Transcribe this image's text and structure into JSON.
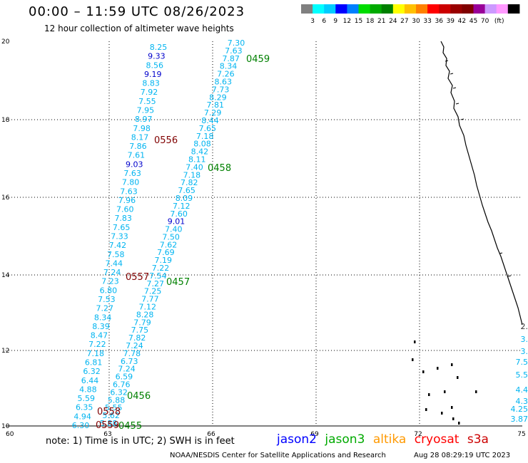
{
  "header": {
    "title": "00:00 – 11:59 UTC 08/26/2023",
    "subtitle": "12 hour collection of altimeter wave heights"
  },
  "colorbar": {
    "swatches": [
      "#808080",
      "#00ffff",
      "#00ccff",
      "#0000ff",
      "#0080ff",
      "#00dd00",
      "#00aa00",
      "#008000",
      "#ffff00",
      "#ffc000",
      "#ff8000",
      "#ff0000",
      "#cc0000",
      "#990000",
      "#800000",
      "#990099",
      "#cc99ff",
      "#ff99ff",
      "#000000"
    ],
    "labels": [
      "3",
      "6",
      "9",
      "12",
      "15",
      "18",
      "21",
      "24",
      "27",
      "30",
      "33",
      "36",
      "39",
      "42",
      "45",
      "70",
      "(ft)"
    ]
  },
  "axes": {
    "lon_ticks": [
      "60",
      "63",
      "66",
      "69",
      "72",
      "75"
    ],
    "lat_ticks": [
      "10",
      "12",
      "14",
      "16",
      "18",
      "20"
    ]
  },
  "passes": [
    {
      "label": "0459",
      "color": "#008000"
    },
    {
      "label": "0556",
      "color": "#800000"
    },
    {
      "label": "0458",
      "color": "#008000"
    },
    {
      "label": "0557",
      "color": "#800000"
    },
    {
      "label": "0457",
      "color": "#008000"
    },
    {
      "label": "0456",
      "color": "#008000"
    },
    {
      "label": "0558",
      "color": "#800000"
    },
    {
      "label": "0559",
      "color": "#800000"
    },
    {
      "label": "0455",
      "color": "#008000"
    }
  ],
  "colors": {
    "cyan": "#00b4f0",
    "blue": "#0000cc",
    "green": "#008000",
    "maroon": "#800000"
  },
  "track_left": {
    "values": [
      "8.25",
      "9.33",
      "8.56",
      "9.19",
      "8.83",
      "7.92",
      "7.55",
      "7.95",
      "8.97",
      "7.98",
      "8.17",
      "7.86",
      "7.61",
      "9.03",
      "7.63",
      "7.80",
      "7.63",
      "7.96",
      "7.60",
      "7.83",
      "7.65",
      "7.33",
      "7.42",
      "7.58",
      "7.44",
      "7.24",
      "7.23",
      "6.80",
      "7.53",
      "7.27",
      "8.34",
      "8.39",
      "8.47",
      "7.22",
      "7.18",
      "6.81",
      "6.32",
      "6.44",
      "4.88",
      "5.59",
      "6.35",
      "4.94",
      "6.30"
    ],
    "colors": [
      "cyan",
      "blue",
      "cyan",
      "blue",
      "cyan",
      "cyan",
      "cyan",
      "cyan",
      "cyan",
      "cyan",
      "cyan",
      "cyan",
      "cyan",
      "blue",
      "cyan",
      "cyan",
      "cyan",
      "cyan",
      "cyan",
      "cyan",
      "cyan",
      "cyan",
      "cyan",
      "cyan",
      "cyan",
      "cyan",
      "cyan",
      "cyan",
      "cyan",
      "cyan",
      "cyan",
      "cyan",
      "cyan",
      "cyan",
      "cyan",
      "cyan",
      "cyan",
      "cyan",
      "cyan",
      "cyan",
      "cyan",
      "cyan",
      "cyan"
    ]
  },
  "track_right": {
    "values": [
      "7.30",
      "7.63",
      "7.87",
      "8.34",
      "7.26",
      "8.63",
      "7.73",
      "8.29",
      "7.81",
      "7.29",
      "8.44",
      "7.65",
      "7.18",
      "8.08",
      "8.42",
      "8.11",
      "7.40",
      "7.18",
      "7.82",
      "7.65",
      "8.09",
      "7.12",
      "7.60",
      "9.01",
      "7.40",
      "7.50",
      "7.62",
      "7.69",
      "7.19",
      "7.22",
      "7.54",
      "7.27",
      "7.25",
      "7.77",
      "7.12",
      "8.28",
      "7.79",
      "7.75",
      "7.82",
      "7.24",
      "7.78",
      "6.73",
      "7.24",
      "6.59",
      "6.76",
      "6.32",
      "5.88",
      "5.55",
      "5.62",
      "5.88"
    ],
    "colors": [
      "cyan",
      "cyan",
      "cyan",
      "cyan",
      "cyan",
      "cyan",
      "cyan",
      "cyan",
      "cyan",
      "cyan",
      "cyan",
      "cyan",
      "cyan",
      "cyan",
      "cyan",
      "cyan",
      "cyan",
      "cyan",
      "cyan",
      "cyan",
      "cyan",
      "cyan",
      "cyan",
      "blue",
      "cyan",
      "cyan",
      "cyan",
      "cyan",
      "cyan",
      "cyan",
      "cyan",
      "cyan",
      "cyan",
      "cyan",
      "cyan",
      "cyan",
      "cyan",
      "cyan",
      "cyan",
      "cyan",
      "cyan",
      "cyan",
      "cyan",
      "cyan",
      "cyan",
      "cyan",
      "cyan",
      "cyan",
      "cyan",
      "cyan"
    ]
  },
  "east_edge_values": [
    "2.",
    "3.",
    "3.",
    "7.5",
    "5.5",
    "4.4",
    "4.3",
    "4.25",
    "3.87"
  ],
  "footer": {
    "note": "note:  1) Time is in UTC;  2) SWH is in feet",
    "missions": [
      {
        "name": "jason2",
        "color": "#0000ff"
      },
      {
        "name": "jason3",
        "color": "#00aa00"
      },
      {
        "name": "altika",
        "color": "#ff9900"
      },
      {
        "name": "cryosat",
        "color": "#ff0000"
      },
      {
        "name": "s3a",
        "color": "#cc0000"
      }
    ],
    "credit": "NOAA/NESDIS Center for Satellite Applications and Research",
    "timestamp": "Aug 28 08:29:19 UTC 2023"
  }
}
